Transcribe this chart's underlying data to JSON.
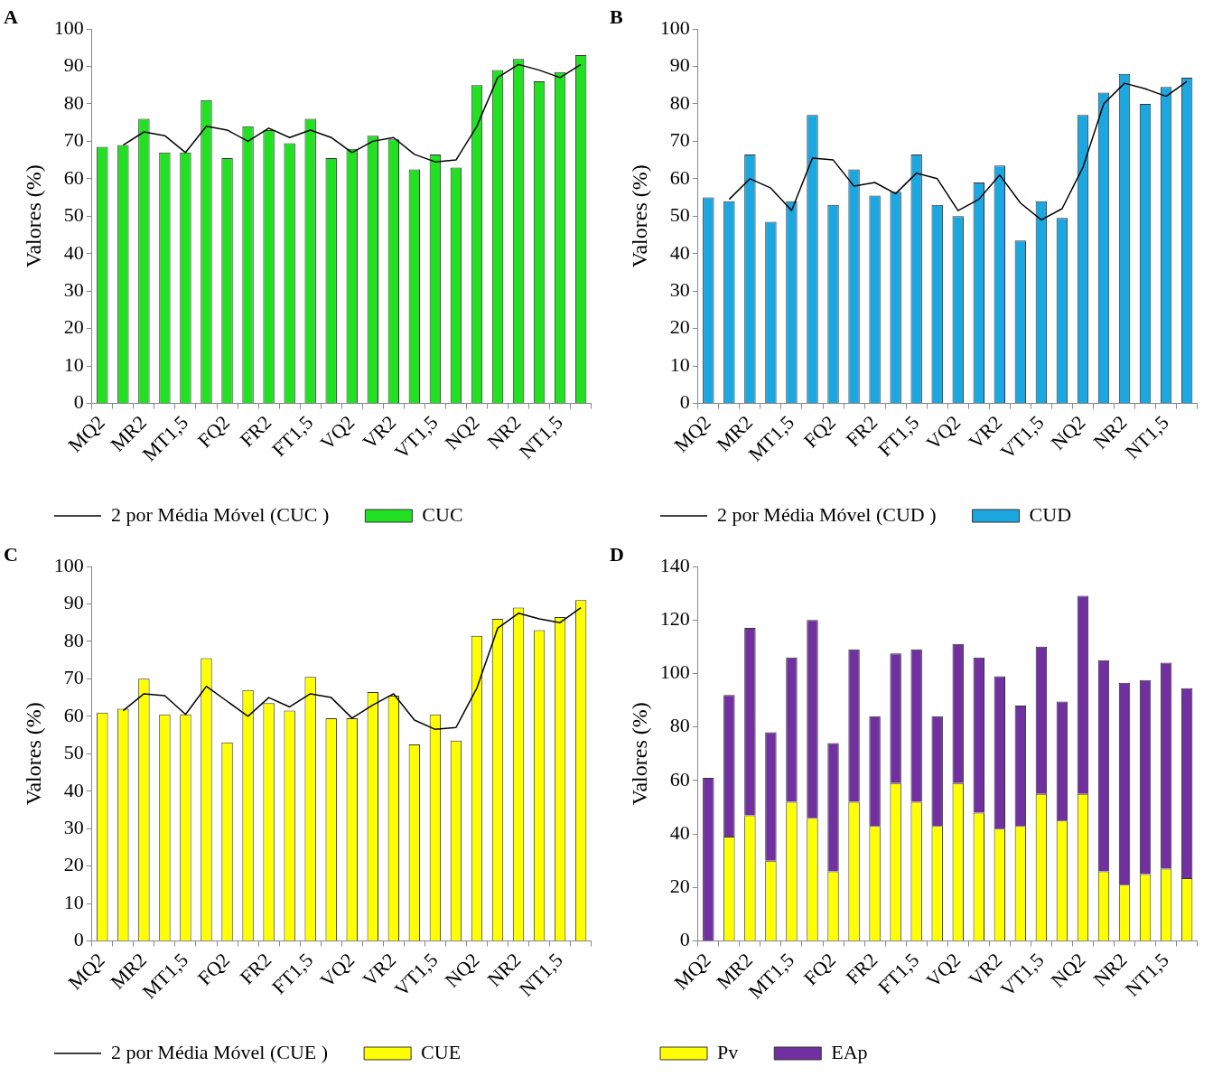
{
  "chart_data": [
    {
      "type": "bar",
      "title": "A",
      "ylabel": "Valores (%)",
      "categories": [
        "MQ2",
        null,
        "MR2",
        null,
        "MT1,5",
        null,
        "FQ2",
        null,
        "FR2",
        null,
        "FT1,5",
        null,
        "VQ2",
        null,
        "VR2",
        null,
        "VT1,5",
        null,
        "NQ2",
        null,
        "NR2",
        null,
        "NT1,5",
        null
      ],
      "ylim": [
        0,
        100
      ],
      "yticks": [
        0,
        10,
        20,
        30,
        40,
        50,
        60,
        70,
        80,
        90,
        100
      ],
      "legend": "bottom",
      "series": [
        {
          "name": "CUC",
          "color": "#22e022",
          "values": [
            68.5,
            69,
            76,
            67,
            67,
            81,
            65.5,
            74,
            73,
            69.5,
            76,
            65.5,
            68,
            71.5,
            70.5,
            62.5,
            66.5,
            63,
            85,
            89,
            92,
            86,
            88.5,
            93
          ]
        },
        {
          "name": "2 por Média Móvel (CUC )",
          "type": "line",
          "color": "#000000",
          "values": [
            null,
            69,
            72.5,
            71.5,
            67,
            74,
            73,
            70,
            73.5,
            71,
            73,
            71,
            67,
            70,
            71,
            66.5,
            64.5,
            65,
            74,
            87,
            90.5,
            89,
            87,
            90.5
          ]
        }
      ]
    },
    {
      "type": "bar",
      "title": "B",
      "ylabel": "Valores (%)",
      "categories": [
        "MQ2",
        null,
        "MR2",
        null,
        "MT1,5",
        null,
        "FQ2",
        null,
        "FR2",
        null,
        "FT1,5",
        null,
        "VQ2",
        null,
        "VR2",
        null,
        "VT1,5",
        null,
        "NQ2",
        null,
        "NR2",
        null,
        "NT1,5",
        null
      ],
      "ylim": [
        0,
        100
      ],
      "yticks": [
        0,
        10,
        20,
        30,
        40,
        50,
        60,
        70,
        80,
        90,
        100
      ],
      "legend": "bottom",
      "series": [
        {
          "name": "CUD",
          "color": "#1ca7e1",
          "values": [
            55,
            54,
            66.5,
            48.5,
            54,
            77,
            53,
            62.5,
            55.5,
            56.5,
            66.5,
            53,
            50,
            59,
            63.5,
            43.5,
            54,
            49.5,
            77,
            83,
            88,
            80,
            84.5,
            87
          ]
        },
        {
          "name": "2 por Média Móvel (CUD )",
          "type": "line",
          "color": "#000000",
          "values": [
            null,
            54.5,
            60,
            57.5,
            51.5,
            65.5,
            65,
            58,
            59,
            56,
            61.5,
            60,
            51.5,
            54.5,
            61,
            53.5,
            49,
            52,
            63,
            80,
            85.5,
            84,
            82,
            86
          ]
        }
      ]
    },
    {
      "type": "bar",
      "title": "C",
      "ylabel": "Valores (%)",
      "categories": [
        "MQ2",
        null,
        "MR2",
        null,
        "MT1,5",
        null,
        "FQ2",
        null,
        "FR2",
        null,
        "FT1,5",
        null,
        "VQ2",
        null,
        "VR2",
        null,
        "VT1,5",
        null,
        "NQ2",
        null,
        "NR2",
        null,
        "NT1,5",
        null
      ],
      "ylim": [
        0,
        100
      ],
      "yticks": [
        0,
        10,
        20,
        30,
        40,
        50,
        60,
        70,
        80,
        90,
        100
      ],
      "legend": "bottom",
      "series": [
        {
          "name": "CUE",
          "color": "#ffff00",
          "values": [
            61,
            62,
            70,
            60.5,
            60.5,
            75.5,
            53,
            67,
            63.5,
            61.5,
            70.5,
            59.5,
            59.5,
            66.5,
            65.5,
            52.5,
            60.5,
            53.5,
            81.5,
            86,
            89,
            83,
            86.5,
            91
          ]
        },
        {
          "name": "2 por Média Móvel (CUE )",
          "type": "line",
          "color": "#000000",
          "values": [
            null,
            61.5,
            66,
            65.5,
            60.5,
            68,
            64,
            60,
            65,
            62.5,
            66,
            65,
            59.5,
            63,
            66,
            59,
            56.5,
            57,
            67.5,
            83.5,
            87.5,
            86,
            85,
            89
          ]
        }
      ]
    },
    {
      "type": "bar",
      "title": "D",
      "ylabel": "Valores (%)",
      "stacked": true,
      "categories": [
        "MQ2",
        null,
        "MR2",
        null,
        "MT1,5",
        null,
        "FQ2",
        null,
        "FR2",
        null,
        "FT1,5",
        null,
        "VQ2",
        null,
        "VR2",
        null,
        "VT1,5",
        null,
        "NQ2",
        null,
        "NR2",
        null,
        "NT1,5",
        null
      ],
      "ylim": [
        0,
        140
      ],
      "yticks": [
        0,
        20,
        40,
        60,
        80,
        100,
        120,
        140
      ],
      "legend": "bottom",
      "series": [
        {
          "name": "Pv",
          "color": "#ffff00",
          "values": [
            0,
            39,
            47,
            30,
            52,
            46,
            26,
            52,
            43,
            59,
            52,
            43,
            59,
            48,
            42,
            43,
            55,
            45,
            55,
            26,
            21,
            25,
            27,
            23.5
          ]
        },
        {
          "name": "EAp",
          "color": "#7030a0",
          "values": [
            61,
            53,
            70,
            48,
            54,
            74,
            48,
            57,
            41,
            48.5,
            57,
            41,
            52,
            58,
            57,
            45,
            55,
            44.5,
            74,
            79,
            75.5,
            72.5,
            77,
            71
          ]
        }
      ]
    }
  ]
}
